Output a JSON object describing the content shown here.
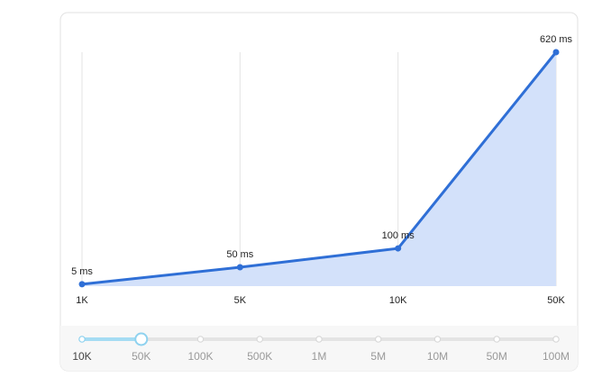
{
  "chart_data": {
    "type": "area",
    "categories": [
      "1K",
      "5K",
      "10K",
      "50K"
    ],
    "values": [
      5,
      50,
      100,
      620
    ],
    "value_labels": [
      "5 ms",
      "50 ms",
      "100 ms",
      "620 ms"
    ],
    "color": "#2f6fd6",
    "fill": "#d3e1fa",
    "grid": true
  },
  "slider": {
    "options": [
      "10K",
      "50K",
      "100K",
      "500K",
      "1M",
      "5M",
      "10M",
      "50M",
      "100M"
    ],
    "selected": 1
  }
}
